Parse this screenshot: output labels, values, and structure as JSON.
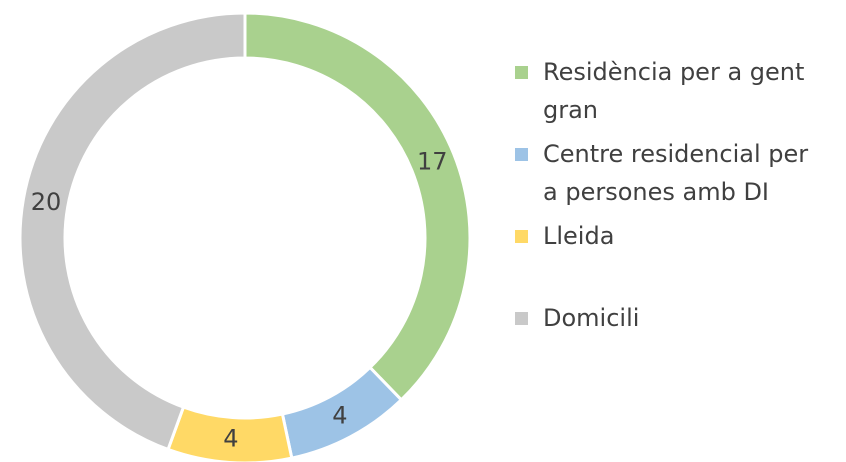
{
  "chart_data": {
    "type": "donut",
    "categories": [
      "Residència per a gent gran",
      "Centre residencial per a persones amb DI",
      "Lleida",
      "Domicili"
    ],
    "values": [
      17,
      4,
      4,
      20
    ],
    "colors": [
      "#a9d18e",
      "#9dc3e6",
      "#ffd966",
      "#c9c9c9"
    ],
    "legend": "right"
  }
}
